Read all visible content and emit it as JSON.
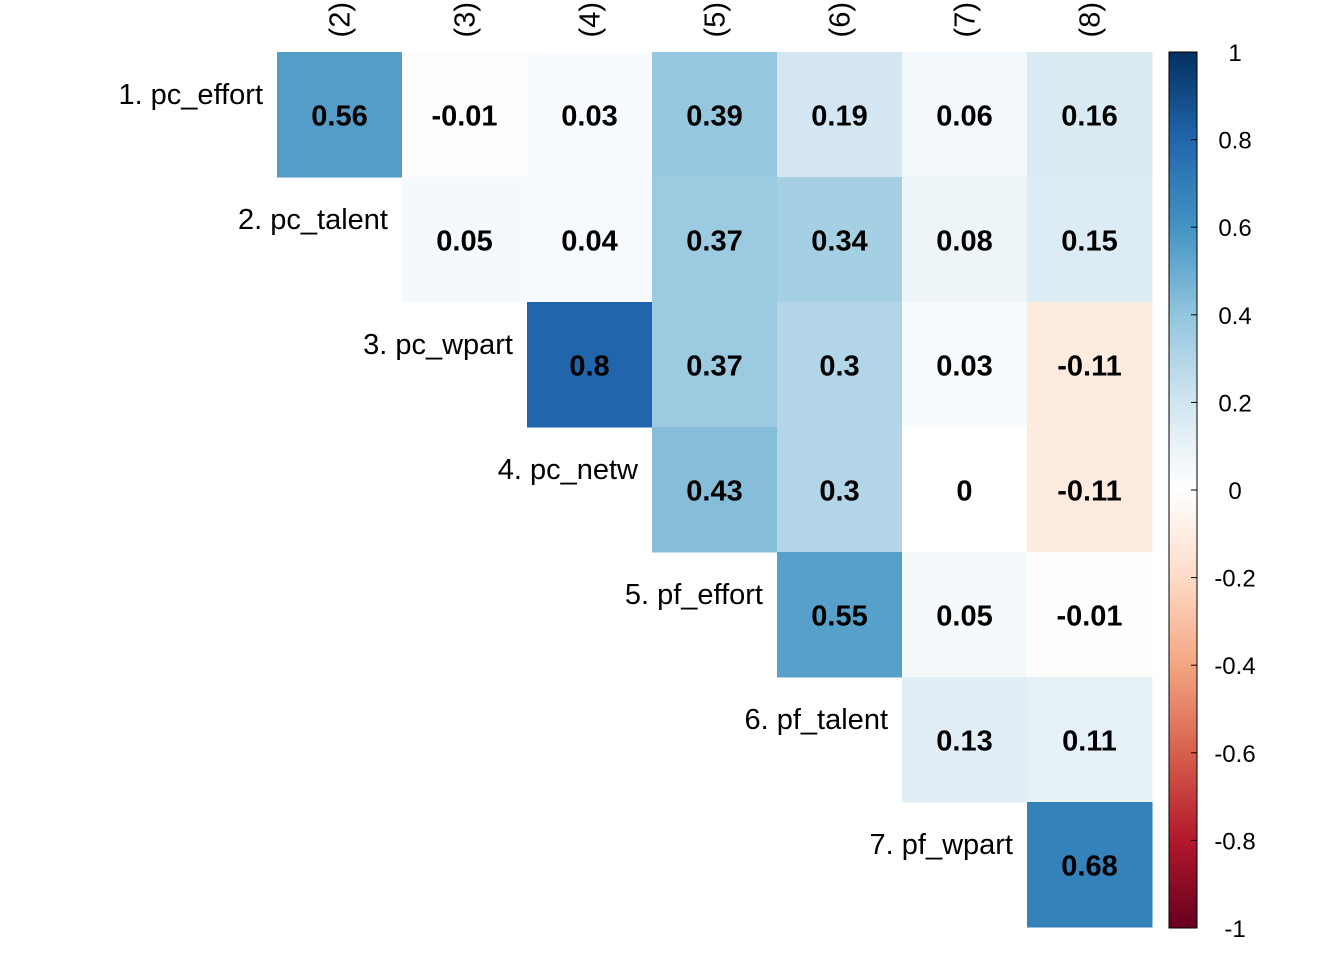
{
  "chart_data": {
    "type": "heatmap",
    "title": "",
    "xlabel": "",
    "ylabel": "",
    "row_labels": [
      "1. pc_effort",
      "2. pc_talent",
      "3. pc_wpart",
      "4. pc_netw",
      "5. pf_effort",
      "6. pf_talent",
      "7. pf_wpart"
    ],
    "col_labels": [
      "(2)",
      "(3)",
      "(4)",
      "(5)",
      "(6)",
      "(7)",
      "(8)"
    ],
    "values": [
      [
        0.56,
        -0.01,
        0.03,
        0.39,
        0.19,
        0.06,
        0.16
      ],
      [
        null,
        0.05,
        0.04,
        0.37,
        0.34,
        0.08,
        0.15
      ],
      [
        null,
        null,
        0.8,
        0.37,
        0.3,
        0.03,
        -0.11
      ],
      [
        null,
        null,
        null,
        0.43,
        0.3,
        0,
        -0.11
      ],
      [
        null,
        null,
        null,
        null,
        0.55,
        0.05,
        -0.01
      ],
      [
        null,
        null,
        null,
        null,
        null,
        0.13,
        0.11
      ],
      [
        null,
        null,
        null,
        null,
        null,
        null,
        0.68
      ]
    ],
    "value_range": [
      -1,
      1
    ],
    "colorbar": {
      "ticks": [
        1,
        0.8,
        0.6,
        0.4,
        0.2,
        0,
        -0.2,
        -0.4,
        -0.6,
        -0.8,
        -1
      ],
      "tick_labels": [
        "1",
        "0.8",
        "0.6",
        "0.4",
        "0.2",
        "0",
        "-0.2",
        "-0.4",
        "-0.6",
        "-0.8",
        "-1"
      ],
      "palette": [
        "#67001F",
        "#B2182B",
        "#D6604D",
        "#F4A582",
        "#FDDBC7",
        "#FFFFFF",
        "#D1E5F0",
        "#92C5DE",
        "#4393C3",
        "#2166AC",
        "#053061"
      ]
    },
    "legend": "right",
    "grid": false
  }
}
